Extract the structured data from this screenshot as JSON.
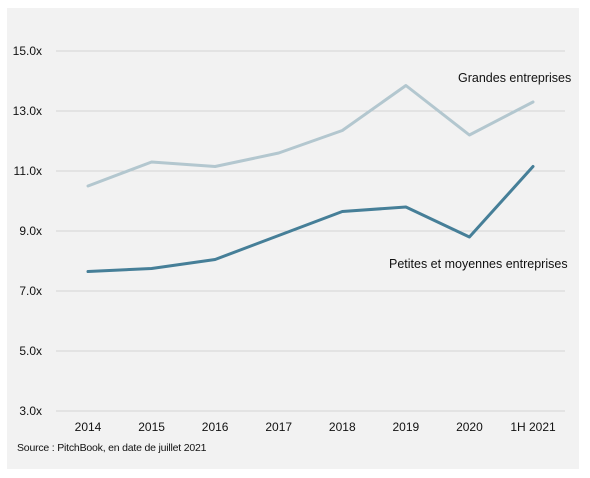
{
  "chart_data": {
    "type": "line",
    "categories": [
      "2014",
      "2015",
      "2016",
      "2017",
      "2018",
      "2019",
      "2020",
      "1H 2021"
    ],
    "series": [
      {
        "name": "Grandes entreprises",
        "color": "#b3c7cf",
        "values": [
          10.5,
          11.3,
          11.15,
          11.6,
          12.35,
          13.85,
          12.2,
          13.3
        ]
      },
      {
        "name": "Petites et moyennes entreprises",
        "color": "#467f98",
        "values": [
          7.65,
          7.75,
          8.05,
          8.85,
          9.65,
          9.8,
          8.8,
          11.15
        ]
      }
    ],
    "yticks": [
      "3.0x",
      "5.0x",
      "7.0x",
      "9.0x",
      "11.0x",
      "13.0x",
      "15.0x"
    ],
    "ylim": [
      3,
      15
    ],
    "grid": true,
    "source": "Source : PitchBook, en date de juillet 2021"
  }
}
